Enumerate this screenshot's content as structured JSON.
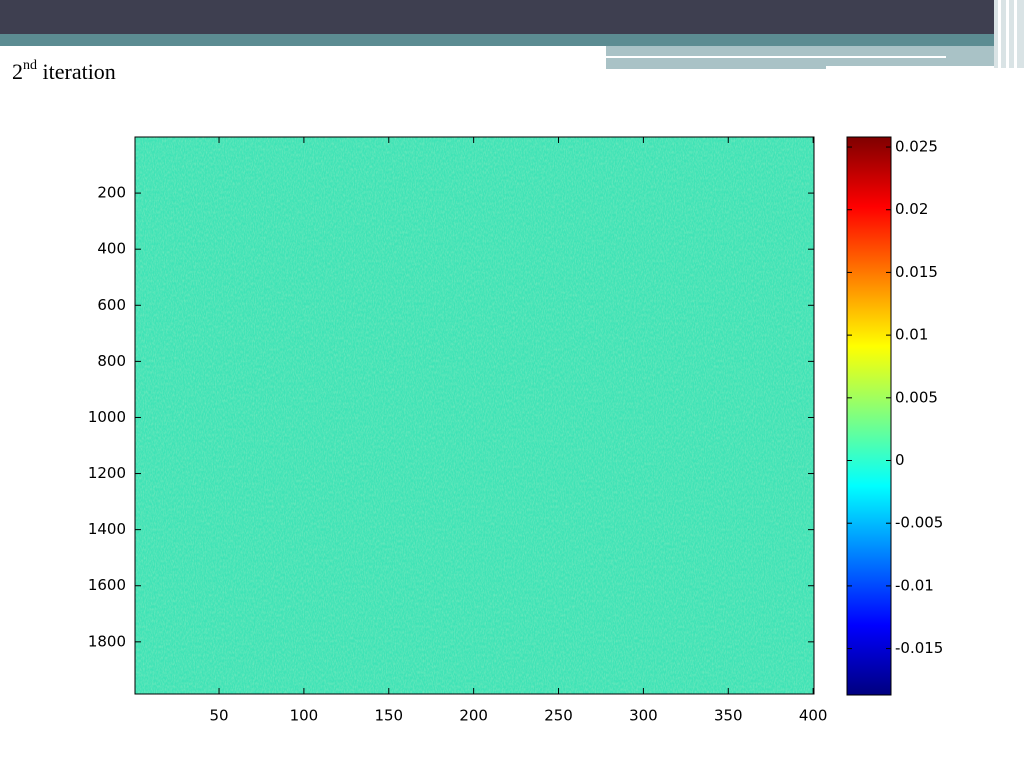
{
  "slide": {
    "title": {
      "number": "2",
      "suffix": "nd",
      "text": "iteration"
    }
  },
  "chart_data": {
    "type": "heatmap",
    "colormap": "jet",
    "xlim": [
      0.5,
      400.5
    ],
    "xticks": [
      50,
      100,
      150,
      200,
      250,
      300,
      350,
      400
    ],
    "ylim": [
      0,
      1986
    ],
    "y_direction": "reverse",
    "yticks": [
      200,
      400,
      600,
      800,
      1000,
      1200,
      1400,
      1600,
      1800
    ],
    "clim": [
      -0.0187,
      0.0258
    ],
    "cticks": [
      -0.015,
      -0.01,
      -0.005,
      0,
      0.005,
      0.01,
      0.015,
      0.02,
      0.025
    ]
  }
}
